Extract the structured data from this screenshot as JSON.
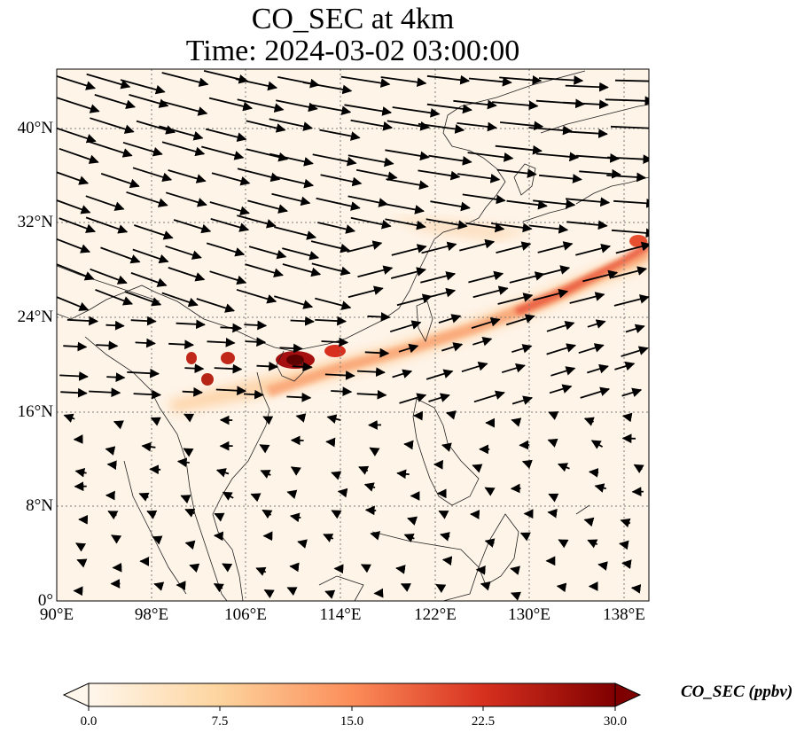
{
  "title": {
    "line1": "CO_SEC at 4km",
    "line2": "Time: 2024-03-02 03:00:00"
  },
  "map": {
    "lon_range": [
      90,
      141
    ],
    "lat_range": [
      0,
      45
    ],
    "lon_ticks": [
      "90°E",
      "98°E",
      "106°E",
      "114°E",
      "122°E",
      "130°E",
      "138°E"
    ],
    "lat_ticks": [
      "0°",
      "8°N",
      "16°N",
      "24°N",
      "32°N",
      "40°N"
    ],
    "gridlines": "dotted",
    "background_color": "#fef4e8",
    "plume_color": "#f08050",
    "hotspot_color": "#8b0000"
  },
  "colorbar": {
    "label": "CO_SEC (ppbv)",
    "ticks": [
      "0.0",
      "7.5",
      "15.0",
      "22.5",
      "30.0"
    ],
    "range": [
      0,
      30
    ],
    "colormap": "OrRd",
    "colors": [
      "#fff7ec",
      "#fdd49e",
      "#fc8d59",
      "#d7301f",
      "#7f0000"
    ]
  }
}
